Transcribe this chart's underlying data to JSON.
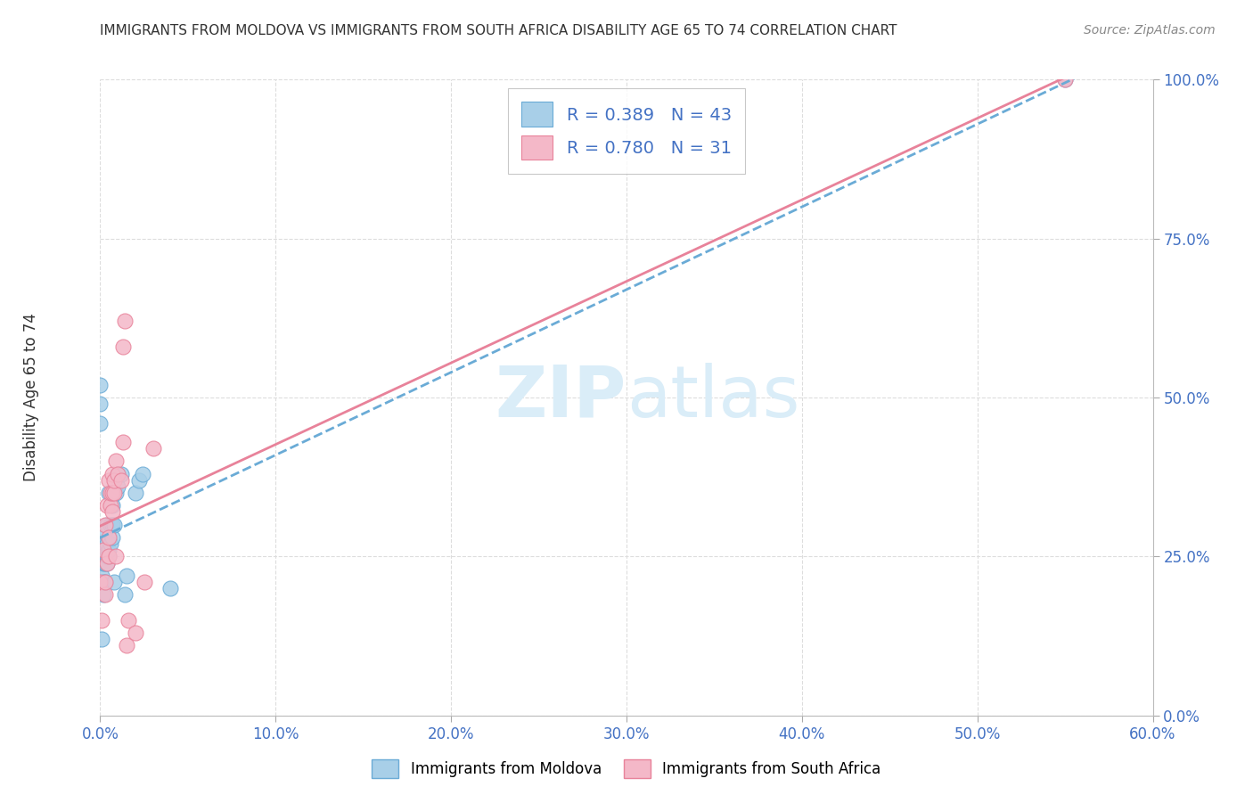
{
  "title": "IMMIGRANTS FROM MOLDOVA VS IMMIGRANTS FROM SOUTH AFRICA DISABILITY AGE 65 TO 74 CORRELATION CHART",
  "source": "Source: ZipAtlas.com",
  "xlabel_ticks": [
    "0.0%",
    "10.0%",
    "20.0%",
    "30.0%",
    "40.0%",
    "50.0%",
    "60.0%"
  ],
  "ylabel_ticks": [
    "0.0%",
    "25.0%",
    "50.0%",
    "75.0%",
    "100.0%"
  ],
  "ylabel_label": "Disability Age 65 to 74",
  "legend_label1": "Immigrants from Moldova",
  "legend_label2": "Immigrants from South Africa",
  "R1": 0.389,
  "N1": 43,
  "R2": 0.78,
  "N2": 31,
  "color1": "#a8cfe8",
  "color2": "#f4b8c8",
  "color1_line": "#6aabd6",
  "color2_line": "#e8829a",
  "title_color": "#333333",
  "tick_color": "#4472c4",
  "watermark_color": "#daedf8",
  "xlim": [
    0.0,
    0.6
  ],
  "ylim": [
    0.0,
    1.0
  ],
  "moldova_x": [
    0.0,
    0.0,
    0.0,
    0.001,
    0.001,
    0.001,
    0.001,
    0.002,
    0.002,
    0.002,
    0.002,
    0.002,
    0.003,
    0.003,
    0.003,
    0.003,
    0.003,
    0.003,
    0.004,
    0.004,
    0.004,
    0.004,
    0.005,
    0.005,
    0.005,
    0.006,
    0.006,
    0.007,
    0.007,
    0.007,
    0.008,
    0.008,
    0.009,
    0.01,
    0.01,
    0.012,
    0.014,
    0.015,
    0.02,
    0.022,
    0.024,
    0.04,
    0.55
  ],
  "moldova_y": [
    0.46,
    0.49,
    0.52,
    0.12,
    0.22,
    0.25,
    0.27,
    0.19,
    0.21,
    0.24,
    0.26,
    0.27,
    0.21,
    0.24,
    0.25,
    0.26,
    0.27,
    0.29,
    0.24,
    0.25,
    0.27,
    0.3,
    0.25,
    0.26,
    0.35,
    0.27,
    0.3,
    0.28,
    0.3,
    0.33,
    0.3,
    0.21,
    0.35,
    0.36,
    0.38,
    0.38,
    0.19,
    0.22,
    0.35,
    0.37,
    0.38,
    0.2,
    1.0
  ],
  "southafrica_x": [
    0.0,
    0.001,
    0.002,
    0.003,
    0.003,
    0.003,
    0.004,
    0.004,
    0.005,
    0.005,
    0.005,
    0.006,
    0.006,
    0.007,
    0.007,
    0.007,
    0.008,
    0.008,
    0.009,
    0.009,
    0.01,
    0.012,
    0.013,
    0.013,
    0.014,
    0.015,
    0.016,
    0.02,
    0.025,
    0.03,
    0.55
  ],
  "southafrica_y": [
    0.21,
    0.15,
    0.26,
    0.19,
    0.21,
    0.3,
    0.24,
    0.33,
    0.25,
    0.28,
    0.37,
    0.33,
    0.35,
    0.32,
    0.35,
    0.38,
    0.35,
    0.37,
    0.4,
    0.25,
    0.38,
    0.37,
    0.58,
    0.43,
    0.62,
    0.11,
    0.15,
    0.13,
    0.21,
    0.42,
    1.0
  ],
  "background_color": "#ffffff",
  "grid_color": "#dddddd"
}
